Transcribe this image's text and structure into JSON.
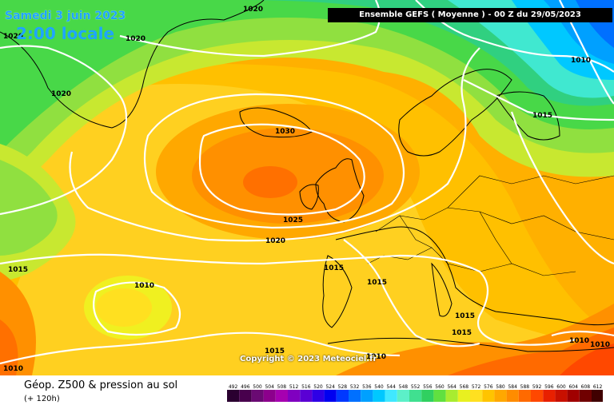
{
  "header": {
    "date": "Samedi 3 juin 2023",
    "time": "2:00 locale",
    "model": "Ensemble GEFS  ( Moyenne )  -  00 Z du 29/05/2023"
  },
  "copyright": "Copyright © 2023 Meteociel.fr",
  "legend": {
    "title": "Géop. Z500 & pression au sol",
    "subtitle": "(+ 120h)",
    "scale_values": [
      "492",
      "496",
      "500",
      "504",
      "508",
      "512",
      "516",
      "520",
      "524",
      "528",
      "532",
      "536",
      "540",
      "544",
      "548",
      "552",
      "556",
      "560",
      "564",
      "568",
      "572",
      "576",
      "580",
      "584",
      "588",
      "592",
      "596",
      "600",
      "604",
      "608",
      "612"
    ],
    "scale_colors": [
      "#2a0030",
      "#48004d",
      "#6a0a73",
      "#8c008c",
      "#a600b0",
      "#8000c0",
      "#5a00d4",
      "#2e00e6",
      "#0000f0",
      "#0038ff",
      "#0070ff",
      "#00a0ff",
      "#00c8ff",
      "#40e8ff",
      "#5cf0c8",
      "#40e090",
      "#30d060",
      "#60e040",
      "#a8ec30",
      "#e8f020",
      "#ffe020",
      "#ffc400",
      "#ffa800",
      "#ff8c00",
      "#ff6a00",
      "#ff4800",
      "#e82000",
      "#c81000",
      "#a00000",
      "#700000",
      "#400000"
    ]
  },
  "isobars": [
    {
      "label": "1030"
    },
    {
      "label": "1025"
    },
    {
      "label": "1020"
    },
    {
      "label": "1020"
    },
    {
      "label": "1020"
    },
    {
      "label": "1020"
    },
    {
      "label": "1020"
    },
    {
      "label": "1015"
    },
    {
      "label": "1015"
    },
    {
      "label": "1015"
    },
    {
      "label": "1015"
    },
    {
      "label": "1015"
    },
    {
      "label": "1015"
    },
    {
      "label": "1015"
    },
    {
      "label": "1010"
    },
    {
      "label": "1010"
    },
    {
      "label": "1010"
    },
    {
      "label": "1010"
    },
    {
      "label": "1010"
    },
    {
      "label": "1010"
    }
  ]
}
